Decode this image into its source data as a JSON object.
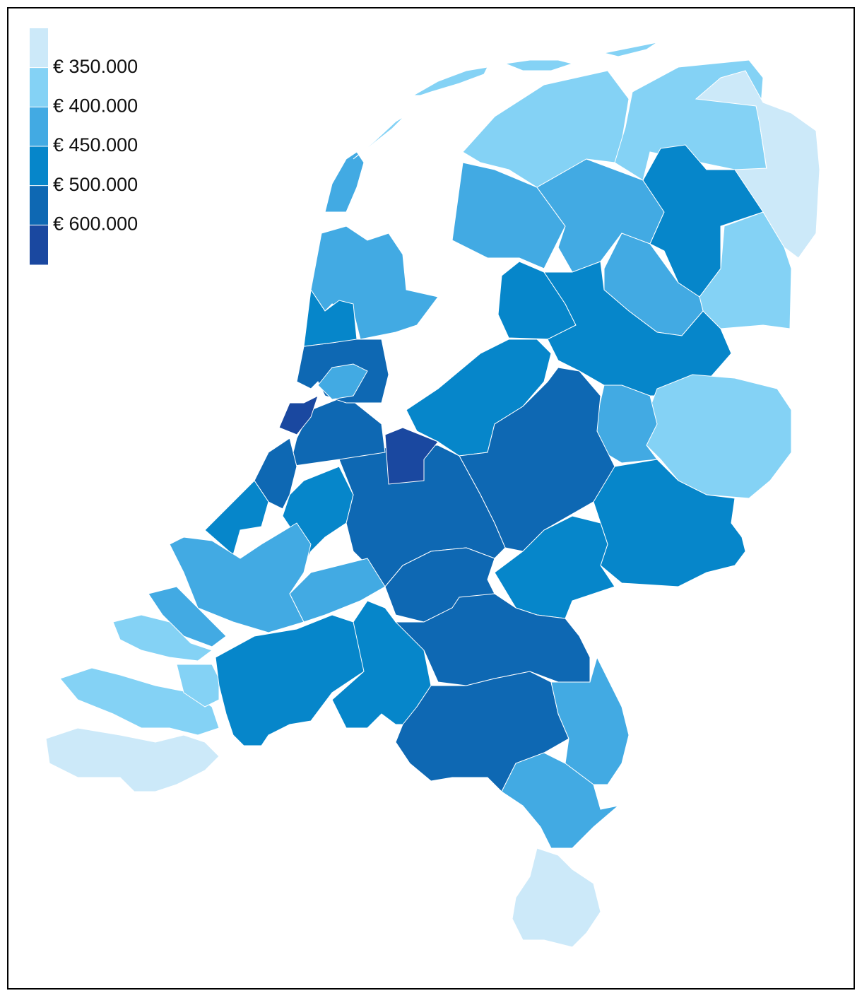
{
  "legend": {
    "colors": [
      "#cce9f9",
      "#84d2f5",
      "#42aae3",
      "#0686ca",
      "#0e68b3",
      "#1a48a0"
    ],
    "ticks": [
      {
        "value": 350000,
        "label": "€ 350.000"
      },
      {
        "value": 400000,
        "label": "€ 400.000"
      },
      {
        "value": 450000,
        "label": "€ 450.000"
      },
      {
        "value": 500000,
        "label": "€ 500.000"
      },
      {
        "value": 600000,
        "label": "€ 600.000"
      }
    ]
  }
}
